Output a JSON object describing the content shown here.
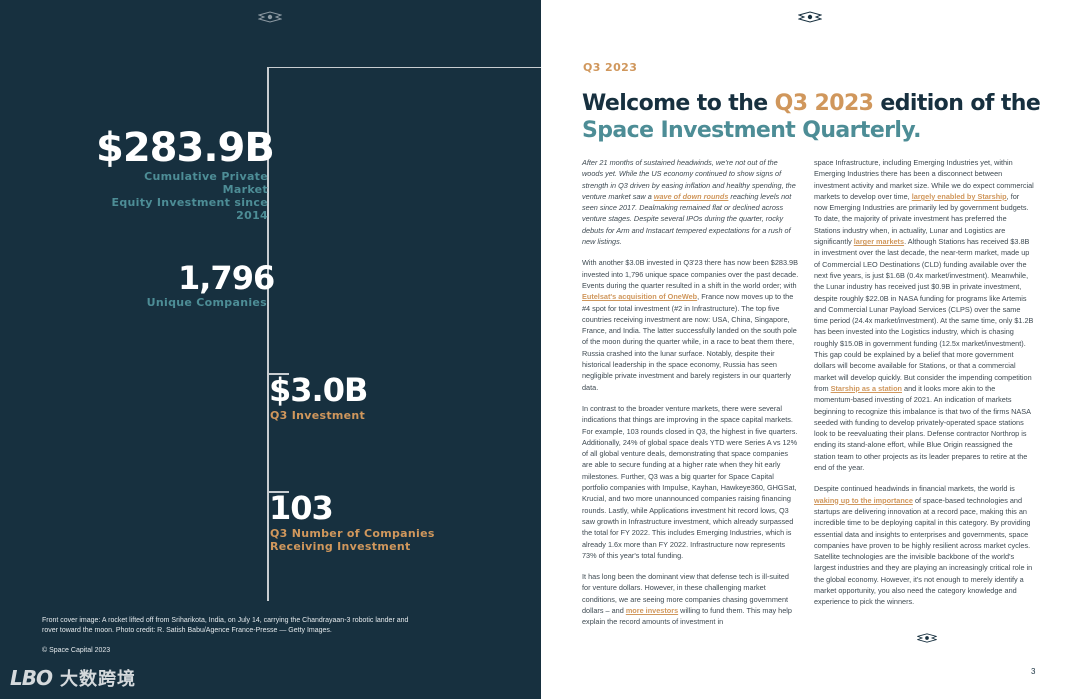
{
  "left_panel": {
    "stats": [
      {
        "value": "$283.9B",
        "label_line1": "Cumulative Private Market",
        "label_line2": "Equity Investment since 2014"
      },
      {
        "value": "1,796",
        "label_line1": "Unique Companies",
        "label_line2": ""
      },
      {
        "value": "$3.0B",
        "label_line1": "Q3 Investment",
        "label_line2": ""
      },
      {
        "value": "103",
        "label_line1": "Q3 Number of Companies",
        "label_line2": "Receiving Investment"
      }
    ],
    "caption": "Front cover image: A rocket lifted off from Sriharikota, India, on July 14, carrying the Chandrayaan-3 robotic lander and rover toward the moon. Photo credit: R. Satish Babu/Agence France-Presse — Getty Images.",
    "copyright": "© Space Capital 2023",
    "watermark_logo": "LBO",
    "watermark_text": "大数跨境"
  },
  "right_panel": {
    "kicker": "Q3 2023",
    "headline": {
      "part1": "Welcome to the ",
      "part2": "Q3 2023",
      "part3": " edition of the ",
      "part4": "Space Investment Quarterly."
    },
    "column1": {
      "intro": {
        "before": "After 21 months of sustained headwinds, we're not out of the woods yet. While the US economy continued to show signs of strength in Q3 driven by easing inflation and healthy spending, the venture market saw a ",
        "link": "wave of down rounds",
        "after": " reaching levels not seen since 2017. Dealmaking remained flat or declined across venture stages. Despite several IPOs during the quarter, rocky debuts for Arm and Instacart tempered expectations for a rush of new listings."
      },
      "para2": {
        "before": "With another $3.0B invested in Q3'23 there has now been $283.9B invested into 1,796 unique space companies over the past decade. Events during the quarter resulted in a shift in the world order; with ",
        "link": "Eutelsat's acquisition of OneWeb",
        "after": ", France now moves up to the #4 spot for total investment (#2 in Infrastructure). The top five countries receiving investment are now: USA, China, Singapore, France, and India. The latter successfully landed on the south pole of the moon during the quarter while, in a race to beat them there, Russia crashed into the lunar surface. Notably, despite their historical leadership in the space economy, Russia has seen negligible private investment and barely registers in our quarterly data."
      },
      "para3": "In contrast to the broader venture markets, there were several indications that things are improving in the space capital markets. For example, 103 rounds closed in Q3, the highest in five quarters. Additionally, 24% of global space deals YTD were Series A vs 12% of all global venture deals, demonstrating that space companies are able to secure funding at a higher rate when they hit early milestones. Further, Q3 was a big quarter for Space Capital portfolio companies with Impulse, Kayhan, Hawkeye360, GHGSat, Krucial, and two more unannounced companies raising financing rounds. Lastly, while Applications investment hit record lows, Q3 saw growth in Infrastructure investment, which already surpassed the total for FY 2022. This includes Emerging Industries, which is already 1.6x more than FY 2022. Infrastructure now represents 73% of this year's total funding.",
      "para4": {
        "before": "It has long been the dominant view that defense tech is ill-suited for venture dollars. However, in these challenging market conditions, we are seeing more companies chasing government dollars – and ",
        "link": "more investors",
        "after": " willing to fund them. This may help explain the record amounts of investment in"
      }
    },
    "column2": {
      "para1": {
        "before": "space Infrastructure, including Emerging Industries yet, within Emerging Industries there has been a disconnect between investment activity and market size. While we do expect commercial markets to develop over time, ",
        "link1": "largely enabled by Starship",
        "mid1": ", for now Emerging Industries are primarily led by government budgets. To date, the majority of private investment has preferred the Stations industry when, in actuality, Lunar and Logistics are significantly ",
        "link2": "larger markets",
        "mid2": ". Although Stations has received $3.8B in investment over the last decade, the near-term market, made up of Commercial LEO Destinations (CLD) funding available over the next five years, is just $1.6B (0.4x market/investment). Meanwhile, the Lunar industry has received just $0.9B in private investment, despite roughly $22.0B in NASA funding for programs like Artemis and Commercial Lunar Payload Services (CLPS) over the same time period (24.4x market/investment). At the same time, only $1.2B has been invested into the Logistics industry, which is chasing roughly $15.0B in government funding (12.5x market/investment). This gap could be explained by a belief that more government dollars will become available for Stations, or that a commercial market will develop quickly. But consider the impending competition from ",
        "link3": "Starship as a station",
        "after": " and it looks more akin to the momentum-based investing of 2021. An indication of markets beginning to recognize this imbalance is that two of the firms NASA seeded with funding to develop privately-operated space stations look to be reevaluating their plans. Defense contractor Northrop is ending its stand-alone effort, while Blue Origin reassigned the station team to other projects as its leader prepares to retire at the end of the year."
      },
      "para2": {
        "before": "Despite continued headwinds in financial markets, the world is ",
        "link": "waking up to the importance",
        "after": " of space-based technologies and startups are delivering innovation at a record pace, making this an incredible time to be deploying capital in this category. By providing essential data and insights to enterprises and governments, space companies have proven to be highly resilient across market cycles. Satellite technologies are the invisible backbone of the world's largest industries and they are playing an increasingly critical role in the global economy. However, it's not enough to merely identify a market opportunity, you also need the category knowledge and experience to pick the winners."
      }
    },
    "page_number": "3"
  },
  "colors": {
    "navy": "#17303f",
    "gold": "#d0975c",
    "teal": "#4d8d96",
    "body_text": "#3e4a52"
  }
}
